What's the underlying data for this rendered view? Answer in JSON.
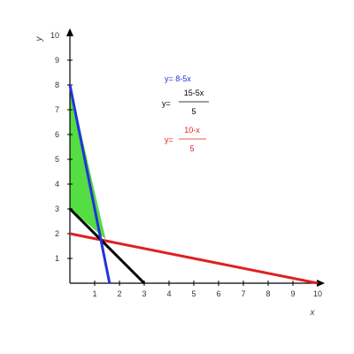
{
  "chart_data": {
    "type": "line",
    "xlabel": "x",
    "ylabel": "y",
    "xlim": [
      0,
      10
    ],
    "ylim": [
      0,
      10
    ],
    "x_ticks": [
      "1",
      "2",
      "3",
      "4",
      "5",
      "6",
      "7",
      "8",
      "9",
      "10"
    ],
    "y_ticks": [
      "1",
      "2",
      "3",
      "4",
      "5",
      "6",
      "7",
      "8",
      "9",
      "10"
    ],
    "series": [
      {
        "equation": "y= 8-5x",
        "color": "#2233dd",
        "x": [
          0,
          1.6
        ],
        "y": [
          8,
          0
        ]
      },
      {
        "equation_prefix": "y=",
        "numerator": "15-5x",
        "denominator": "5",
        "color": "#000000",
        "x": [
          0,
          3
        ],
        "y": [
          3,
          0
        ]
      },
      {
        "equation_prefix": "y=",
        "numerator": "10-x",
        "denominator": "5",
        "color": "#e02020",
        "x": [
          0,
          10
        ],
        "y": [
          2,
          0
        ]
      }
    ],
    "shaded_region": {
      "color": "#55dd44",
      "x": [
        0,
        0,
        1.4444
      ],
      "y": [
        8,
        3,
        1.7778
      ]
    },
    "grid": false
  }
}
